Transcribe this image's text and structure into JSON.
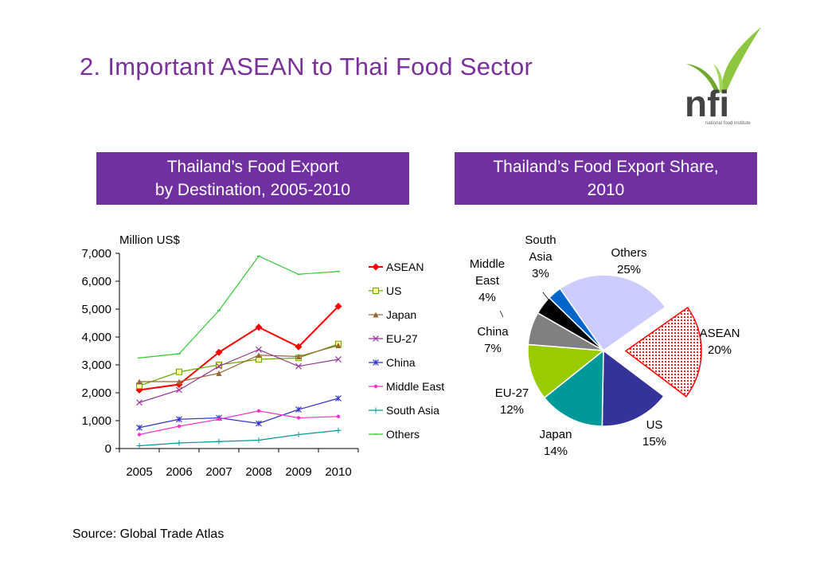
{
  "slide": {
    "title": "2. Important ASEAN to Thai Food Sector",
    "left_banner": [
      "Thailand’s Food Export",
      "by Destination, 2005-2010"
    ],
    "right_banner": [
      "Thailand’s Food Export Share,",
      "2010"
    ],
    "source": "Source: Global Trade Atlas",
    "logo": {
      "text": "nfi",
      "subtext": "national food institute",
      "icon": "leaf-sprout-icon"
    }
  },
  "colors": {
    "title": "#7b2f9b",
    "banner": "#7030a0",
    "logo_green": "#8dc63f"
  },
  "chart_data": [
    {
      "type": "line",
      "title": "",
      "ylabel": "Million US$",
      "xlabel": "",
      "categories": [
        "2005",
        "2006",
        "2007",
        "2008",
        "2009",
        "2010"
      ],
      "yticks": [
        "0",
        "1,000",
        "2,000",
        "3,000",
        "4,000",
        "5,000",
        "6,000",
        "7,000"
      ],
      "ylim": [
        0,
        7000
      ],
      "grid": false,
      "legend": "right",
      "series": [
        {
          "name": "ASEAN",
          "color": "#ff0000",
          "marker": "diamond",
          "values": [
            2100,
            2300,
            3450,
            4350,
            3650,
            5100
          ]
        },
        {
          "name": "US",
          "color": "#66aa00",
          "marker": "square",
          "values": [
            2250,
            2750,
            3000,
            3200,
            3250,
            3750
          ]
        },
        {
          "name": "Japan",
          "color": "#996633",
          "marker": "triangle",
          "values": [
            2400,
            2400,
            2700,
            3350,
            3300,
            3700
          ]
        },
        {
          "name": "EU-27",
          "color": "#993399",
          "marker": "x",
          "values": [
            1650,
            2100,
            2950,
            3550,
            2950,
            3200
          ]
        },
        {
          "name": "China",
          "color": "#3333cc",
          "marker": "star",
          "values": [
            750,
            1050,
            1100,
            900,
            1400,
            1800
          ]
        },
        {
          "name": "Middle East",
          "color": "#ff33cc",
          "marker": "dot",
          "values": [
            500,
            800,
            1050,
            1350,
            1100,
            1150
          ]
        },
        {
          "name": "South Asia",
          "color": "#009999",
          "marker": "plus",
          "values": [
            100,
            200,
            250,
            300,
            500,
            650
          ]
        },
        {
          "name": "Others",
          "color": "#33cc33",
          "marker": "dash",
          "values": [
            3250,
            3400,
            4950,
            6900,
            6250,
            6350
          ]
        }
      ]
    },
    {
      "type": "pie",
      "title": "",
      "slices": [
        {
          "label": "ASEAN",
          "pct": "20%",
          "value": 20,
          "color": "#ff0000",
          "pattern": "dots",
          "exploded": true
        },
        {
          "label": "US",
          "pct": "15%",
          "value": 15,
          "color": "#333399"
        },
        {
          "label": "Japan",
          "pct": "14%",
          "value": 14,
          "color": "#009999"
        },
        {
          "label": "EU-27",
          "pct": "12%",
          "value": 12,
          "color": "#99cc00"
        },
        {
          "label": "China",
          "pct": "7%",
          "value": 7,
          "color": "#808080"
        },
        {
          "label": "Middle East",
          "pct": "4%",
          "value": 4,
          "color": "#000000"
        },
        {
          "label": "South Asia",
          "pct": "3%",
          "value": 3,
          "color": "#0066cc"
        },
        {
          "label": "Others",
          "pct": "25%",
          "value": 25,
          "color": "#ccccff"
        }
      ]
    }
  ]
}
